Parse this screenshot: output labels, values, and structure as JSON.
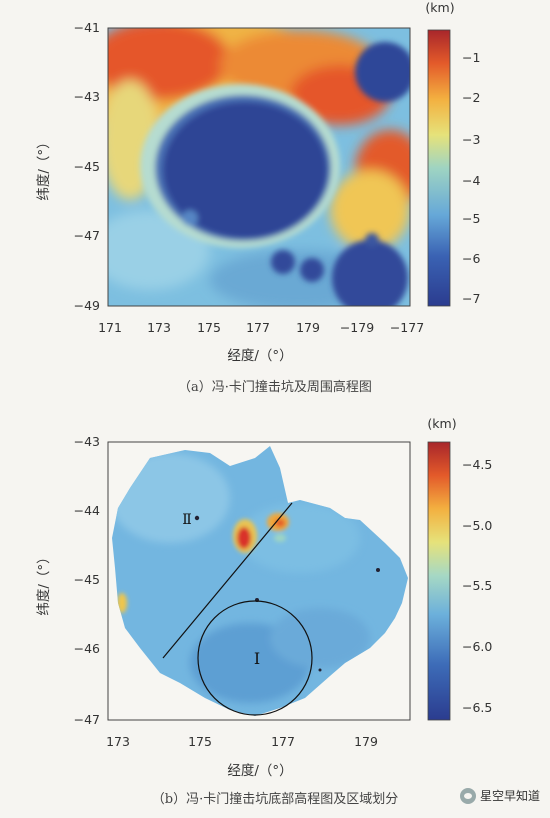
{
  "chart_data": [
    {
      "type": "heatmap",
      "panel_label": "(a)",
      "caption": "（a）冯·卡门撞击坑及周围高程图",
      "xlabel": "经度/（°）",
      "ylabel": "纬度/（°）",
      "x_ticks": [
        "171",
        "173",
        "175",
        "177",
        "179",
        "−179",
        "−177"
      ],
      "y_ticks": [
        "−41",
        "−43",
        "−45",
        "−47",
        "−49"
      ],
      "xlim": [
        171,
        183
      ],
      "ylim": [
        -49,
        -41
      ],
      "colorbar": {
        "unit": "(km)",
        "ticks": [
          "−1",
          "−2",
          "−3",
          "−4",
          "−5",
          "−6",
          "−7"
        ],
        "range": [
          -7.3,
          -0.3
        ]
      },
      "features": [
        {
          "name": "Von Kármán crater floor",
          "center": [
            177.0,
            -45.4
          ],
          "value": -6.8
        },
        {
          "name": "crater NE",
          "center": [
            182.2,
            -42.2
          ],
          "value": -6.6
        },
        {
          "name": "small crater S",
          "center": [
            177.8,
            -48.0
          ],
          "value": -6.5
        }
      ]
    },
    {
      "type": "heatmap",
      "panel_label": "(b)",
      "caption": "（b）冯·卡门撞击坑底部高程图及区域划分",
      "xlabel": "经度/（°）",
      "ylabel": "纬度/（°）",
      "x_ticks": [
        "173",
        "175",
        "177",
        "179"
      ],
      "y_ticks": [
        "−43",
        "−44",
        "−45",
        "−46",
        "−47"
      ],
      "xlim": [
        173,
        180.2
      ],
      "ylim": [
        -47,
        -43
      ],
      "colorbar": {
        "unit": "(km)",
        "ticks": [
          "−4.5",
          "−5.0",
          "−5.5",
          "−6.0",
          "−6.5"
        ],
        "range": [
          -6.7,
          -4.3
        ]
      },
      "regions": [
        {
          "label": "Ⅰ",
          "type": "circle",
          "center": [
            176.5,
            -46.0
          ],
          "radius_deg": 1.2
        },
        {
          "label": "Ⅱ",
          "type": "point",
          "center": [
            175.0,
            -44.05
          ]
        }
      ],
      "divider_line": [
        [
          174.2,
          -46.1
        ],
        [
          177.3,
          -43.9
        ]
      ]
    }
  ],
  "watermark": {
    "text": "星空早知道",
    "icon": "wechat-icon"
  }
}
